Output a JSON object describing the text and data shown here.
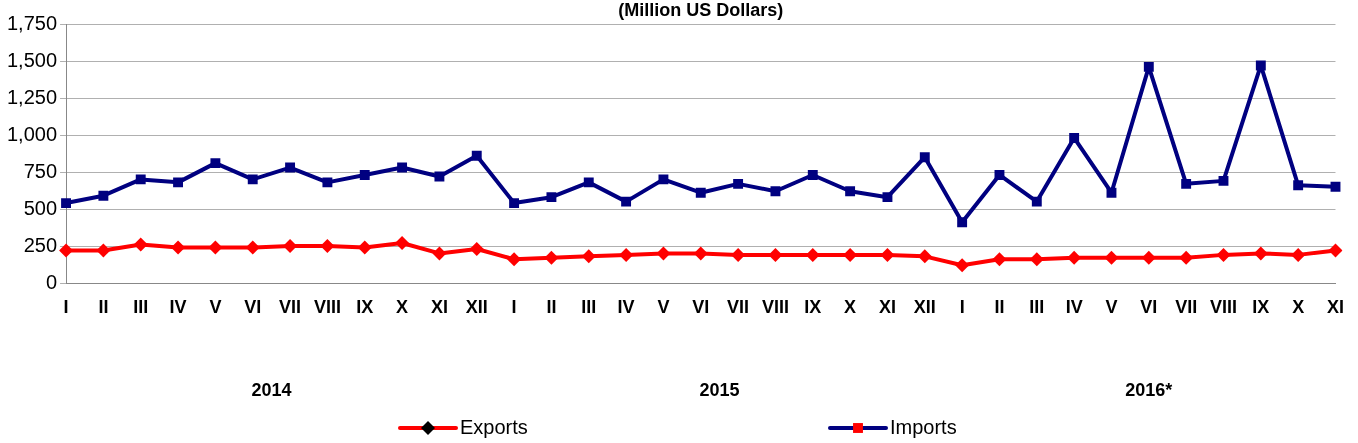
{
  "chart_data": {
    "type": "line",
    "title": "(Million US Dollars)",
    "categories": [
      "I",
      "II",
      "III",
      "IV",
      "V",
      "VI",
      "VII",
      "VIII",
      "IX",
      "X",
      "XI",
      "XII",
      "I",
      "II",
      "III",
      "IV",
      "V",
      "VI",
      "VII",
      "VIII",
      "IX",
      "X",
      "XI",
      "XII",
      "I",
      "II",
      "III",
      "IV",
      "V",
      "VI",
      "VII",
      "VIII",
      "IX",
      "X",
      "XI"
    ],
    "series": [
      {
        "name": "Exports",
        "color": "#ff0000",
        "marker": "diamond",
        "values": [
          220,
          220,
          260,
          240,
          240,
          240,
          250,
          250,
          240,
          270,
          200,
          230,
          160,
          170,
          180,
          190,
          200,
          200,
          190,
          190,
          190,
          190,
          190,
          180,
          120,
          160,
          160,
          170,
          170,
          170,
          170,
          190,
          200,
          190,
          220
        ]
      },
      {
        "name": "Imports",
        "color": "#000080",
        "marker": "square",
        "values": [
          540,
          590,
          700,
          680,
          810,
          700,
          780,
          680,
          730,
          780,
          720,
          860,
          540,
          580,
          680,
          550,
          700,
          610,
          670,
          620,
          730,
          620,
          580,
          850,
          410,
          730,
          550,
          980,
          610,
          1460,
          670,
          690,
          1470,
          660,
          650
        ]
      }
    ],
    "ylim": [
      0,
      1750
    ],
    "yticks": [
      0,
      250,
      500,
      750,
      {
        "value": 1000,
        "label": "1,000"
      },
      {
        "value": 1250,
        "label": "1,250"
      },
      {
        "value": 1500,
        "label": "1,500"
      },
      {
        "value": 1750,
        "label": "1,750"
      }
    ],
    "grid": "y",
    "legend": "bottom",
    "annotations": [
      "2014",
      "2015",
      "2016*"
    ]
  }
}
